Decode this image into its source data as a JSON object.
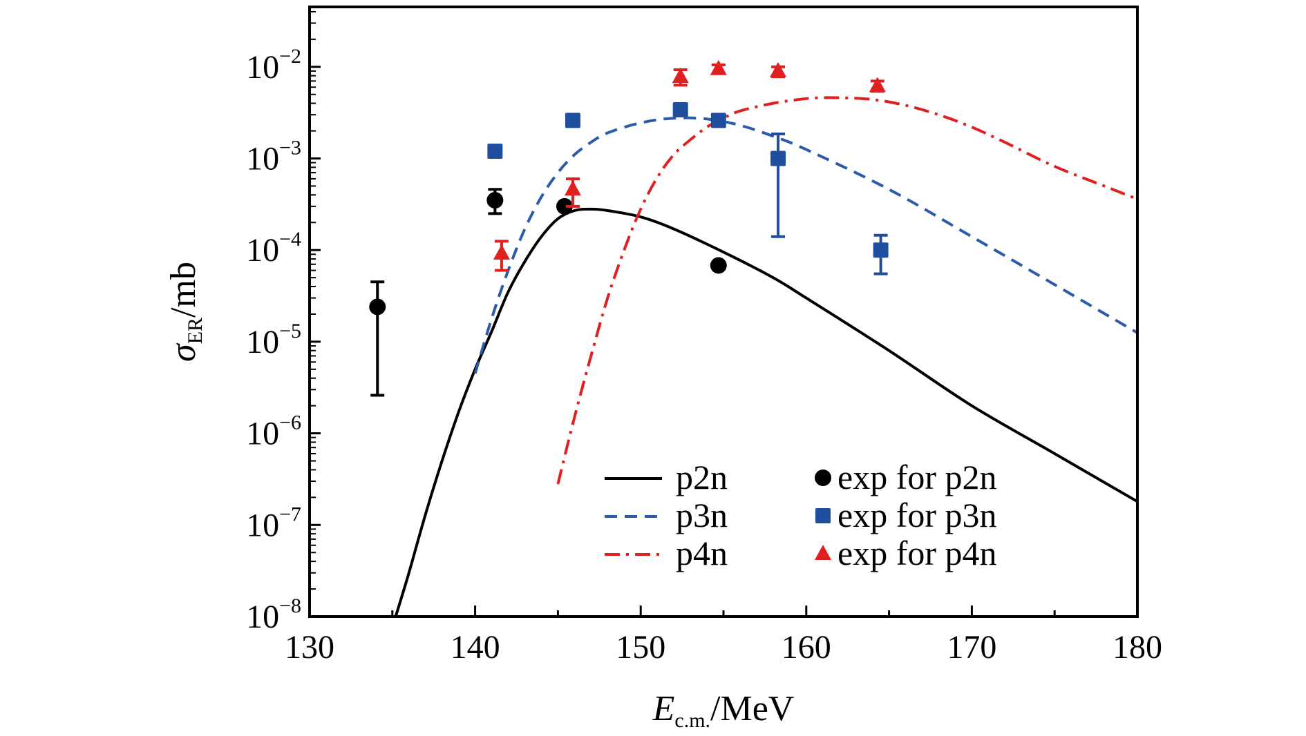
{
  "chart_data": {
    "type": "line",
    "title": "",
    "xlabel": {
      "main": "E",
      "sub": "c.m.",
      "unit": "/MeV"
    },
    "ylabel": {
      "main": "σ",
      "sub": "ER",
      "unit": "/mb"
    },
    "xlim": [
      130,
      180
    ],
    "ylim": [
      1e-08,
      0.05
    ],
    "yscale": "log",
    "xticks": [
      "130",
      "140",
      "150",
      "160",
      "170",
      "180"
    ],
    "yticks": [
      {
        "base": "10",
        "exp": "−8",
        "value": 1e-08
      },
      {
        "base": "10",
        "exp": "−7",
        "value": 1e-07
      },
      {
        "base": "10",
        "exp": "−6",
        "value": 1e-06
      },
      {
        "base": "10",
        "exp": "−5",
        "value": 1e-05
      },
      {
        "base": "10",
        "exp": "−4",
        "value": 0.0001
      },
      {
        "base": "10",
        "exp": "−3",
        "value": 0.001
      },
      {
        "base": "10",
        "exp": "−2",
        "value": 0.01
      }
    ],
    "grid": false,
    "legend_position": "bottom-right",
    "series": [
      {
        "name": "p2n",
        "kind": "line",
        "style": "solid",
        "color": "#000000",
        "x": [
          135.2,
          136,
          137,
          138,
          139,
          140,
          141,
          142,
          143,
          144,
          145,
          146,
          147,
          148,
          150,
          152,
          155,
          158,
          160,
          165,
          170,
          175,
          180
        ],
        "y": [
          1e-08,
          3e-08,
          1.3e-07,
          5e-07,
          1.7e-06,
          5e-06,
          1.3e-05,
          3.5e-05,
          7.5e-05,
          0.00014,
          0.00022,
          0.00027,
          0.00028,
          0.00027,
          0.00023,
          0.00017,
          9.5e-05,
          5e-05,
          3e-05,
          8e-06,
          2e-06,
          6e-07,
          1.8e-07
        ]
      },
      {
        "name": "p3n",
        "kind": "line",
        "style": "dashed",
        "color": "#2a5caa",
        "x": [
          140,
          141,
          142,
          143,
          144,
          145,
          146,
          147,
          148,
          150,
          152,
          154,
          156,
          158,
          160,
          165,
          170,
          175,
          180
        ],
        "y": [
          4.5e-06,
          1.8e-05,
          6e-05,
          0.00017,
          0.00038,
          0.0007,
          0.0011,
          0.0015,
          0.0019,
          0.00245,
          0.00275,
          0.0027,
          0.0023,
          0.00175,
          0.00125,
          0.00046,
          0.00014,
          4.2e-05,
          1.25e-05
        ]
      },
      {
        "name": "p4n",
        "kind": "line",
        "style": "dashdot",
        "color": "#e0201f",
        "x": [
          145,
          146,
          147,
          148,
          149,
          150,
          151,
          152,
          153,
          154,
          155,
          156,
          158,
          160,
          161,
          162,
          164,
          166,
          168,
          170,
          172,
          175,
          178,
          180
        ],
        "y": [
          2.8e-07,
          1.5e-06,
          7e-06,
          3e-05,
          0.0001,
          0.00028,
          0.00062,
          0.0011,
          0.0016,
          0.0022,
          0.00275,
          0.0033,
          0.004,
          0.0045,
          0.0046,
          0.0046,
          0.0044,
          0.0038,
          0.003,
          0.0022,
          0.0015,
          0.00082,
          0.0005,
          0.00036
        ]
      },
      {
        "name": "exp for p2n",
        "kind": "points",
        "marker": "circle",
        "color": "#000000",
        "points": [
          {
            "x": 134.1,
            "y": 2.4e-05,
            "ylo": 2.6e-06,
            "yhi": 4.5e-05
          },
          {
            "x": 141.2,
            "y": 0.00035,
            "ylo": 0.00025,
            "yhi": 0.00046
          },
          {
            "x": 145.4,
            "y": 0.0003
          },
          {
            "x": 154.7,
            "y": 6.8e-05
          }
        ]
      },
      {
        "name": "exp for p3n",
        "kind": "points",
        "marker": "square",
        "color": "#1f4e9e",
        "points": [
          {
            "x": 141.2,
            "y": 0.0012
          },
          {
            "x": 145.9,
            "y": 0.0026
          },
          {
            "x": 152.4,
            "y": 0.0034,
            "ylo": 0.003,
            "yhi": 0.0038
          },
          {
            "x": 154.7,
            "y": 0.0026
          },
          {
            "x": 158.3,
            "y": 0.001,
            "ylo": 0.00014,
            "yhi": 0.00185
          },
          {
            "x": 164.5,
            "y": 0.0001,
            "ylo": 5.5e-05,
            "yhi": 0.000145
          }
        ]
      },
      {
        "name": "exp for p4n",
        "kind": "points",
        "marker": "triangle",
        "color": "#e0201f",
        "points": [
          {
            "x": 141.6,
            "y": 9.2e-05,
            "ylo": 6e-05,
            "yhi": 0.000125
          },
          {
            "x": 145.9,
            "y": 0.00046,
            "ylo": 0.0003,
            "yhi": 0.0006
          },
          {
            "x": 152.4,
            "y": 0.0078,
            "ylo": 0.0063,
            "yhi": 0.0093
          },
          {
            "x": 154.7,
            "y": 0.0095,
            "ylo": 0.0085,
            "yhi": 0.0105
          },
          {
            "x": 158.3,
            "y": 0.009,
            "ylo": 0.0078,
            "yhi": 0.01
          },
          {
            "x": 164.3,
            "y": 0.0062,
            "ylo": 0.0054,
            "yhi": 0.007
          }
        ]
      }
    ]
  }
}
